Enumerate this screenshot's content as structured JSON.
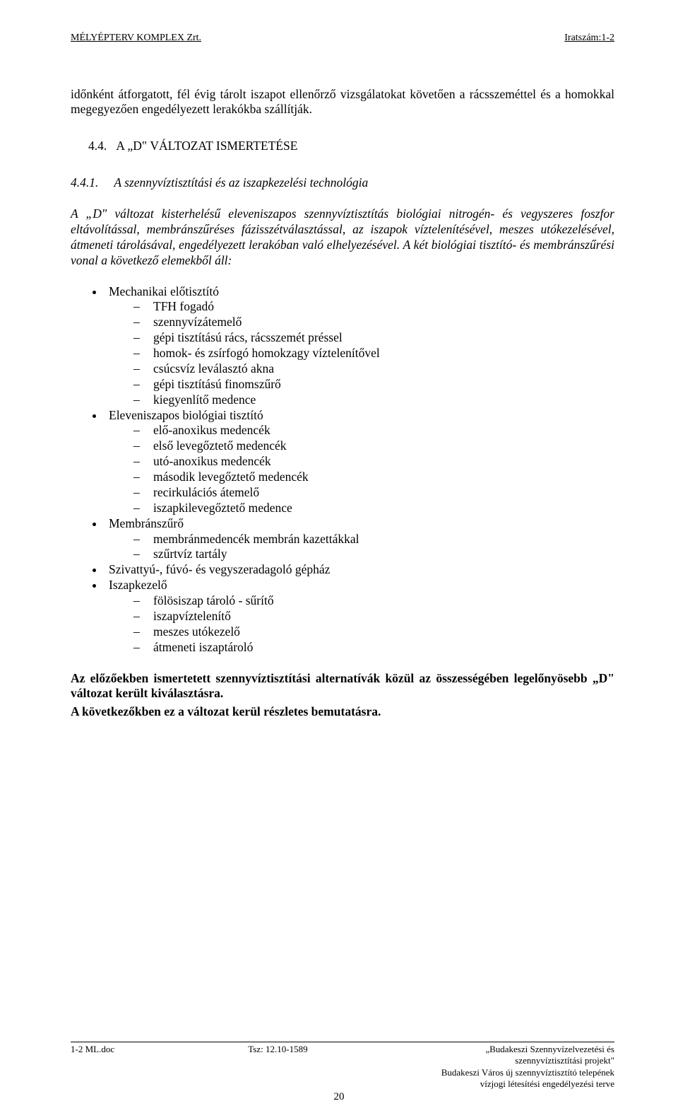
{
  "header": {
    "left": "MÉLYÉPTERV KOMPLEX Zrt.",
    "right": "Iratszám:1-2"
  },
  "intro": "időnként átforgatott, fél évig tárolt iszapot ellenőrző vizsgálatokat követően a rácsszeméttel és a homokkal megegyezően engedélyezett lerakókba szállítják.",
  "heading": {
    "num": "4.4.",
    "prefix": "A „D\" ",
    "caps": "VÁLTOZAT ISMERTETÉSE"
  },
  "subheading": {
    "num": "4.4.1.",
    "text": "A szennyvíztisztítási és az iszapkezelési technológia"
  },
  "tech_para": "A „D\" változat kisterhelésű eleveniszapos szennyvíztisztítás biológiai nitrogén- és vegyszeres foszfor eltávolítással, membránszűréses fázisszétválasztással, az iszapok víztelenítésével, meszes utókezelésével, átmeneti tárolásával, engedélyezett lerakóban való elhelyezésével. A két biológiai tisztító- és membránszűrési vonal a következő elemekből áll:",
  "bullets": [
    {
      "label": "Mechanikai előtisztító",
      "sub": [
        "TFH fogadó",
        "szennyvízátemelő",
        "gépi tisztítású rács, rácsszemét préssel",
        "homok- és zsírfogó homokzagy víztelenítővel",
        "csúcsvíz leválasztó akna",
        "gépi tisztítású finomszűrő",
        "kiegyenlítő medence"
      ]
    },
    {
      "label": "Eleveniszapos biológiai tisztító",
      "sub": [
        "elő-anoxikus medencék",
        "első levegőztető medencék",
        "utó-anoxikus medencék",
        "második levegőztető medencék",
        "recirkulációs átemelő",
        "iszapkilevegőztető medence"
      ]
    },
    {
      "label": "Membránszűrő",
      "sub": [
        "membránmedencék membrán kazettákkal",
        "szűrtvíz tartály"
      ]
    },
    {
      "label": "Szivattyú-, fúvó- és vegyszeradagoló gépház",
      "sub": []
    },
    {
      "label": "Iszapkezelő",
      "sub": [
        "fölösiszap tároló - sűrítő",
        "iszapvíztelenítő",
        "meszes utókezelő",
        "átmeneti iszaptároló"
      ]
    }
  ],
  "closing1": "Az előzőekben ismertetett szennyvíztisztítási alternatívák közül az összességében legelőnyösebb „D\" változat került kiválasztásra.",
  "closing2": "A következőkben ez a változat kerül részletes bemutatásra.",
  "footer": {
    "left": "1-2 ML.doc",
    "center": "Tsz: 12.10-1589",
    "right": [
      "„Budakeszi Szennyvízelvezetési és",
      "szennyvíztisztítási projekt\"",
      "Budakeszi Város új szennyvíztisztító telepének",
      "vízjogi létesítési engedélyezési terve"
    ]
  },
  "page_number": "20"
}
